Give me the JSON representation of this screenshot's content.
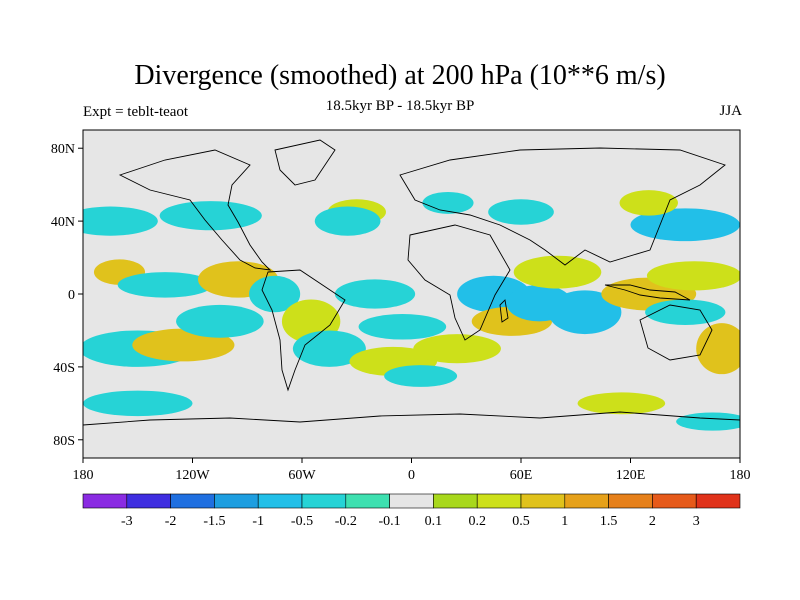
{
  "title": "Divergence (smoothed) at 200 hPa (10**6 m/s)",
  "subtitle": "18.5kyr BP - 18.5kyr BP",
  "left_label": "Expt = teblt-teaot",
  "right_label": "JJA",
  "y_ticks": [
    {
      "value": 80,
      "label": "80N"
    },
    {
      "value": 40,
      "label": "40N"
    },
    {
      "value": 0,
      "label": "0"
    },
    {
      "value": -40,
      "label": "40S"
    },
    {
      "value": -80,
      "label": "80S"
    }
  ],
  "x_ticks": [
    {
      "value": -180,
      "label": "180"
    },
    {
      "value": -120,
      "label": "120W"
    },
    {
      "value": -60,
      "label": "60W"
    },
    {
      "value": 0,
      "label": "0"
    },
    {
      "value": 60,
      "label": "60E"
    },
    {
      "value": 120,
      "label": "120E"
    },
    {
      "value": 180,
      "label": "180"
    }
  ],
  "colorbar": {
    "labels": [
      "-3",
      "-2",
      "-1.5",
      "-1",
      "-0.5",
      "-0.2",
      "-0.1",
      "0.1",
      "0.2",
      "0.5",
      "1",
      "1.5",
      "2",
      "3"
    ],
    "colors": [
      "#8a2be2",
      "#3f2ee0",
      "#1f6fe0",
      "#1e9ee0",
      "#22bfe8",
      "#26d3d6",
      "#3ee0b0",
      "#e6e6e6",
      "#a8d81c",
      "#cde01a",
      "#e0c21c",
      "#e6a11a",
      "#e6801a",
      "#e65a1a",
      "#e0321a"
    ]
  },
  "chart_data": {
    "type": "map",
    "variable": "Divergence (smoothed) at 200 hPa",
    "units": "10**6 m/s",
    "season": "JJA",
    "projection": "cylindrical equidistant",
    "lon_range": [
      -180,
      180
    ],
    "lat_range": [
      -90,
      90
    ],
    "levels": [
      -3,
      -2,
      -1.5,
      -1,
      -0.5,
      -0.2,
      -0.1,
      0.1,
      0.2,
      0.5,
      1,
      1.5,
      2,
      3
    ],
    "blobs": [
      {
        "lon": -165,
        "lat": 40,
        "w": 26,
        "h": 8,
        "value": -0.4
      },
      {
        "lon": -110,
        "lat": 43,
        "w": 28,
        "h": 8,
        "value": -0.4
      },
      {
        "lon": -30,
        "lat": 45,
        "w": 16,
        "h": 7,
        "value": 0.3
      },
      {
        "lon": -35,
        "lat": 40,
        "w": 18,
        "h": 8,
        "value": -0.4
      },
      {
        "lon": 20,
        "lat": 50,
        "w": 14,
        "h": 6,
        "value": -0.3
      },
      {
        "lon": 60,
        "lat": 45,
        "w": 18,
        "h": 7,
        "value": -0.3
      },
      {
        "lon": 150,
        "lat": 38,
        "w": 30,
        "h": 9,
        "value": -0.6
      },
      {
        "lon": 130,
        "lat": 50,
        "w": 16,
        "h": 7,
        "value": 0.3
      },
      {
        "lon": -160,
        "lat": 12,
        "w": 14,
        "h": 7,
        "value": 0.5
      },
      {
        "lon": -135,
        "lat": 5,
        "w": 26,
        "h": 7,
        "value": -0.5
      },
      {
        "lon": -95,
        "lat": 8,
        "w": 22,
        "h": 10,
        "value": 0.5
      },
      {
        "lon": -75,
        "lat": 0,
        "w": 14,
        "h": 10,
        "value": -0.5
      },
      {
        "lon": -20,
        "lat": 0,
        "w": 22,
        "h": 8,
        "value": -0.4
      },
      {
        "lon": -55,
        "lat": -15,
        "w": 16,
        "h": 12,
        "value": 0.4
      },
      {
        "lon": -45,
        "lat": -30,
        "w": 20,
        "h": 10,
        "value": -0.4
      },
      {
        "lon": -150,
        "lat": -30,
        "w": 32,
        "h": 10,
        "value": -0.5
      },
      {
        "lon": -125,
        "lat": -28,
        "w": 28,
        "h": 9,
        "value": 0.5
      },
      {
        "lon": -105,
        "lat": -15,
        "w": 24,
        "h": 9,
        "value": -0.5
      },
      {
        "lon": -5,
        "lat": -18,
        "w": 24,
        "h": 7,
        "value": -0.4
      },
      {
        "lon": -10,
        "lat": -37,
        "w": 24,
        "h": 8,
        "value": 0.4
      },
      {
        "lon": 5,
        "lat": -45,
        "w": 20,
        "h": 6,
        "value": -0.3
      },
      {
        "lon": 25,
        "lat": -30,
        "w": 24,
        "h": 8,
        "value": 0.3
      },
      {
        "lon": 45,
        "lat": 0,
        "w": 20,
        "h": 10,
        "value": -0.6
      },
      {
        "lon": 55,
        "lat": -15,
        "w": 22,
        "h": 8,
        "value": 0.5
      },
      {
        "lon": 70,
        "lat": -5,
        "w": 18,
        "h": 10,
        "value": -0.7
      },
      {
        "lon": 95,
        "lat": -10,
        "w": 20,
        "h": 12,
        "value": -0.6
      },
      {
        "lon": 80,
        "lat": 12,
        "w": 24,
        "h": 9,
        "value": 0.4
      },
      {
        "lon": 130,
        "lat": 0,
        "w": 26,
        "h": 9,
        "value": 0.7
      },
      {
        "lon": 155,
        "lat": 10,
        "w": 26,
        "h": 8,
        "value": 0.4
      },
      {
        "lon": 150,
        "lat": -10,
        "w": 22,
        "h": 7,
        "value": -0.4
      },
      {
        "lon": 170,
        "lat": -30,
        "w": 14,
        "h": 14,
        "value": 0.5
      },
      {
        "lon": -150,
        "lat": -60,
        "w": 30,
        "h": 7,
        "value": -0.3
      },
      {
        "lon": 115,
        "lat": -60,
        "w": 24,
        "h": 6,
        "value": 0.3
      },
      {
        "lon": 165,
        "lat": -70,
        "w": 20,
        "h": 5,
        "value": -0.3
      }
    ]
  }
}
